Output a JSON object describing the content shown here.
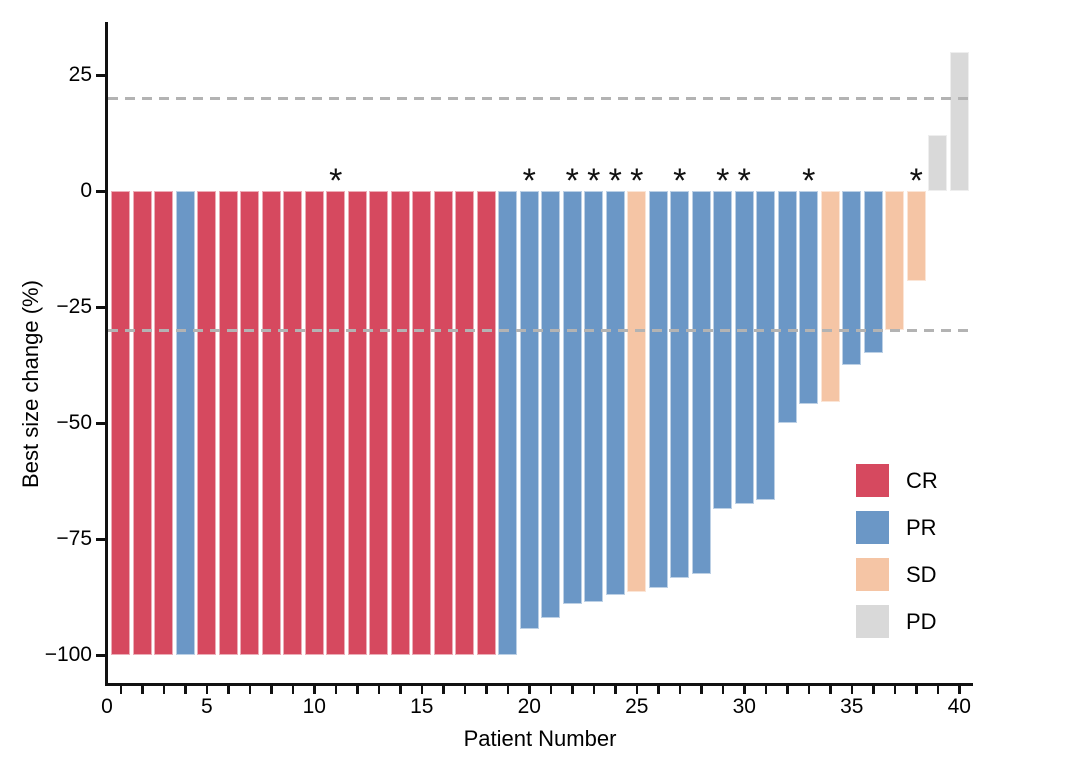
{
  "chart_data": {
    "type": "bar",
    "subtype": "waterfall",
    "title": "",
    "xlabel": "Patient Number",
    "ylabel": "Best size change (%)",
    "xlim": [
      -0.35,
      40.6
    ],
    "ylim": [
      -106,
      36.3
    ],
    "grid": false,
    "legend_position": "inside-right",
    "x_major_ticks": [
      0,
      5,
      10,
      15,
      20,
      25,
      30,
      35,
      40
    ],
    "x_minor_tick_every": 1,
    "y_ticks": [
      {
        "value": 25,
        "label": "25"
      },
      {
        "value": 0,
        "label": "0"
      },
      {
        "value": -25,
        "label": "−25"
      },
      {
        "value": -50,
        "label": "−50"
      },
      {
        "value": -75,
        "label": "−75"
      },
      {
        "value": -100,
        "label": "−100"
      }
    ],
    "reference_lines": [
      20,
      -30
    ],
    "annotation_symbol": "*",
    "legend": [
      {
        "label": "CR",
        "color": "#d6495f"
      },
      {
        "label": "PR",
        "color": "#6b97c6"
      },
      {
        "label": "SD",
        "color": "#f5c5a5"
      },
      {
        "label": "PD",
        "color": "#d9d9d9"
      }
    ],
    "colors": {
      "CR": "#d6495f",
      "PR": "#6b97c6",
      "SD": "#f5c5a5",
      "PD": "#d9d9d9",
      "reference_line": "#b3b3b3",
      "axis": "#111111"
    },
    "patients": [
      {
        "patient": 1,
        "value": -100,
        "response": "CR",
        "asterisk": false
      },
      {
        "patient": 2,
        "value": -100,
        "response": "CR",
        "asterisk": false
      },
      {
        "patient": 3,
        "value": -100,
        "response": "CR",
        "asterisk": false
      },
      {
        "patient": 4,
        "value": -100,
        "response": "PR",
        "asterisk": false
      },
      {
        "patient": 5,
        "value": -100,
        "response": "CR",
        "asterisk": false
      },
      {
        "patient": 6,
        "value": -100,
        "response": "CR",
        "asterisk": false
      },
      {
        "patient": 7,
        "value": -100,
        "response": "CR",
        "asterisk": false
      },
      {
        "patient": 8,
        "value": -100,
        "response": "CR",
        "asterisk": false
      },
      {
        "patient": 9,
        "value": -100,
        "response": "CR",
        "asterisk": false
      },
      {
        "patient": 10,
        "value": -100,
        "response": "CR",
        "asterisk": false
      },
      {
        "patient": 11,
        "value": -100,
        "response": "CR",
        "asterisk": true
      },
      {
        "patient": 12,
        "value": -100,
        "response": "CR",
        "asterisk": false
      },
      {
        "patient": 13,
        "value": -100,
        "response": "CR",
        "asterisk": false
      },
      {
        "patient": 14,
        "value": -100,
        "response": "CR",
        "asterisk": false
      },
      {
        "patient": 15,
        "value": -100,
        "response": "CR",
        "asterisk": false
      },
      {
        "patient": 16,
        "value": -100,
        "response": "CR",
        "asterisk": false
      },
      {
        "patient": 17,
        "value": -100,
        "response": "CR",
        "asterisk": false
      },
      {
        "patient": 18,
        "value": -100,
        "response": "CR",
        "asterisk": false
      },
      {
        "patient": 19,
        "value": -100,
        "response": "PR",
        "asterisk": false
      },
      {
        "patient": 20,
        "value": -94.5,
        "response": "PR",
        "asterisk": true
      },
      {
        "patient": 21,
        "value": -92,
        "response": "PR",
        "asterisk": false
      },
      {
        "patient": 22,
        "value": -89,
        "response": "PR",
        "asterisk": true
      },
      {
        "patient": 23,
        "value": -88.5,
        "response": "PR",
        "asterisk": true
      },
      {
        "patient": 24,
        "value": -87,
        "response": "PR",
        "asterisk": true
      },
      {
        "patient": 25,
        "value": -86.5,
        "response": "SD",
        "asterisk": true
      },
      {
        "patient": 26,
        "value": -85.5,
        "response": "PR",
        "asterisk": false
      },
      {
        "patient": 27,
        "value": -83.5,
        "response": "PR",
        "asterisk": true
      },
      {
        "patient": 28,
        "value": -82.5,
        "response": "PR",
        "asterisk": false
      },
      {
        "patient": 29,
        "value": -68.5,
        "response": "PR",
        "asterisk": true
      },
      {
        "patient": 30,
        "value": -67.5,
        "response": "PR",
        "asterisk": true
      },
      {
        "patient": 31,
        "value": -66.5,
        "response": "PR",
        "asterisk": false
      },
      {
        "patient": 32,
        "value": -50,
        "response": "PR",
        "asterisk": false
      },
      {
        "patient": 33,
        "value": -46,
        "response": "PR",
        "asterisk": true
      },
      {
        "patient": 34,
        "value": -45.5,
        "response": "SD",
        "asterisk": false
      },
      {
        "patient": 35,
        "value": -37.5,
        "response": "PR",
        "asterisk": false
      },
      {
        "patient": 36,
        "value": -35,
        "response": "PR",
        "asterisk": false
      },
      {
        "patient": 37,
        "value": -30,
        "response": "SD",
        "asterisk": false
      },
      {
        "patient": 38,
        "value": -19.5,
        "response": "SD",
        "asterisk": true
      },
      {
        "patient": 39,
        "value": 12,
        "response": "PD",
        "asterisk": false
      },
      {
        "patient": 40,
        "value": 30,
        "response": "PD",
        "asterisk": false
      }
    ]
  }
}
